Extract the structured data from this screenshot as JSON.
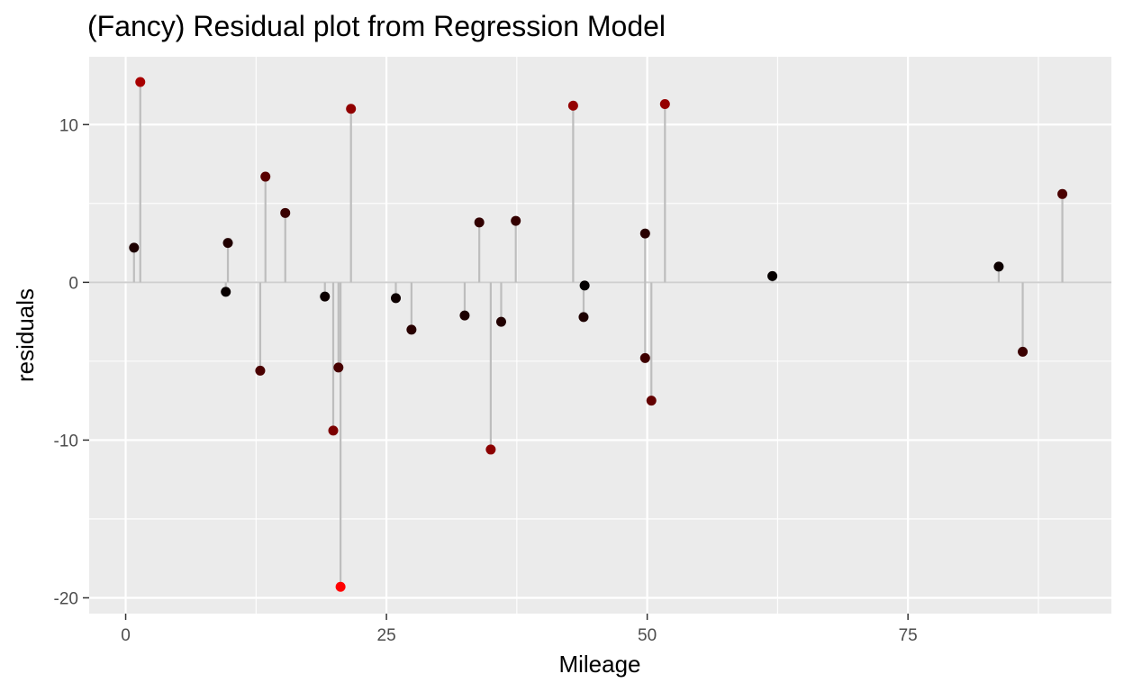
{
  "chart_data": {
    "type": "scatter",
    "title": "(Fancy) Residual plot from Regression Model",
    "xlabel": "Mileage",
    "ylabel": "residuals",
    "xlim": [
      -3.5,
      94.5
    ],
    "ylim": [
      -21.0,
      14.3
    ],
    "x_ticks": [
      0,
      25,
      50,
      75
    ],
    "x_tick_labels": [
      "0",
      "25",
      "50",
      "75"
    ],
    "y_ticks": [
      -20,
      -10,
      0,
      10
    ],
    "y_tick_labels": [
      "-20",
      "-10",
      "0",
      "10"
    ],
    "grid": true,
    "legend": "none",
    "colors": {
      "panel_background": "#ebebeb",
      "grid": "#ffffff",
      "segment": "#bdbdbd",
      "zero_line": "#cfcfcf",
      "point_low": "#000000",
      "point_high": "#ff0000"
    },
    "points": [
      {
        "x": 0.8,
        "y": 2.2
      },
      {
        "x": 1.4,
        "y": 12.7
      },
      {
        "x": 9.6,
        "y": -0.6
      },
      {
        "x": 9.8,
        "y": 2.5
      },
      {
        "x": 12.9,
        "y": -5.6
      },
      {
        "x": 13.4,
        "y": 6.7
      },
      {
        "x": 15.3,
        "y": 4.4
      },
      {
        "x": 19.1,
        "y": -0.9
      },
      {
        "x": 19.9,
        "y": -9.4
      },
      {
        "x": 20.4,
        "y": -5.4
      },
      {
        "x": 20.6,
        "y": -19.3
      },
      {
        "x": 21.6,
        "y": 11.0
      },
      {
        "x": 25.9,
        "y": -1.0
      },
      {
        "x": 27.4,
        "y": -3.0
      },
      {
        "x": 32.5,
        "y": -2.1
      },
      {
        "x": 33.9,
        "y": 3.8
      },
      {
        "x": 35.0,
        "y": -10.6
      },
      {
        "x": 36.0,
        "y": -2.5
      },
      {
        "x": 37.4,
        "y": 3.9
      },
      {
        "x": 42.9,
        "y": 11.2
      },
      {
        "x": 43.9,
        "y": -2.2
      },
      {
        "x": 44.0,
        "y": -0.2
      },
      {
        "x": 49.8,
        "y": 3.1
      },
      {
        "x": 49.8,
        "y": -4.8
      },
      {
        "x": 50.4,
        "y": -7.5
      },
      {
        "x": 51.7,
        "y": 11.3
      },
      {
        "x": 62.0,
        "y": 0.4
      },
      {
        "x": 83.7,
        "y": 1.0
      },
      {
        "x": 86.0,
        "y": -4.4
      },
      {
        "x": 89.8,
        "y": 5.6
      }
    ]
  }
}
